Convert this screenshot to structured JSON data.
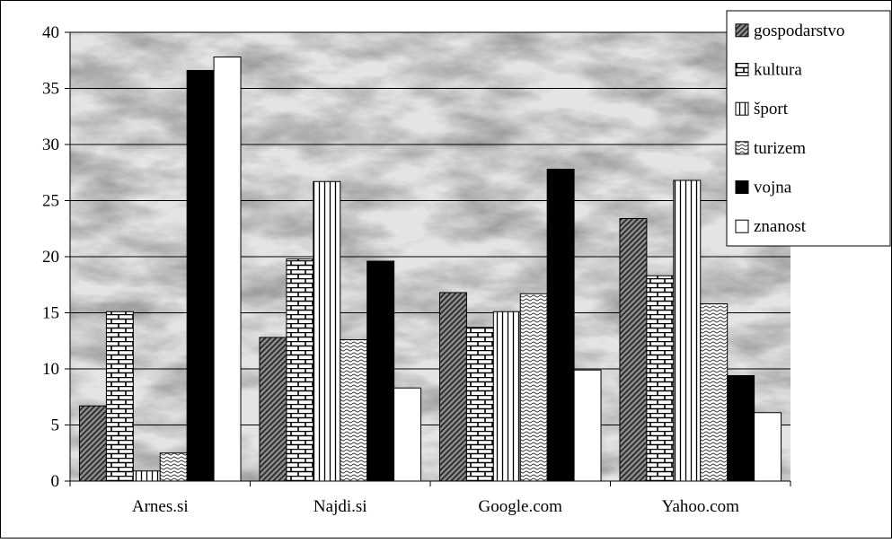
{
  "chart_data": {
    "type": "bar",
    "categories": [
      "Arnes.si",
      "Najdi.si",
      "Google.com",
      "Yahoo.com"
    ],
    "series": [
      {
        "name": "gospodarstvo",
        "pattern": "diag",
        "values": [
          6.7,
          12.8,
          16.8,
          23.4
        ]
      },
      {
        "name": "kultura",
        "pattern": "brick",
        "values": [
          15.1,
          19.8,
          13.7,
          18.3
        ]
      },
      {
        "name": "šport",
        "pattern": "vstripe",
        "values": [
          0.9,
          26.7,
          15.1,
          26.8
        ]
      },
      {
        "name": "turizem",
        "pattern": "wave",
        "values": [
          2.5,
          12.6,
          16.7,
          15.8
        ]
      },
      {
        "name": "vojna",
        "pattern": "solid",
        "values": [
          36.6,
          19.6,
          27.8,
          9.4
        ]
      },
      {
        "name": "znanost",
        "pattern": "white",
        "values": [
          37.8,
          8.3,
          9.9,
          6.1
        ]
      }
    ],
    "yticks": [
      0,
      5,
      10,
      15,
      20,
      25,
      30,
      35,
      40
    ],
    "ylim": [
      0,
      40
    ],
    "grid": true,
    "legend": "top-right",
    "title": "",
    "xlabel": "",
    "ylabel": "",
    "colors": {
      "vojna": "#000000",
      "znanost": "#ffffff",
      "outline": "#000000",
      "grid": "#000000"
    }
  }
}
